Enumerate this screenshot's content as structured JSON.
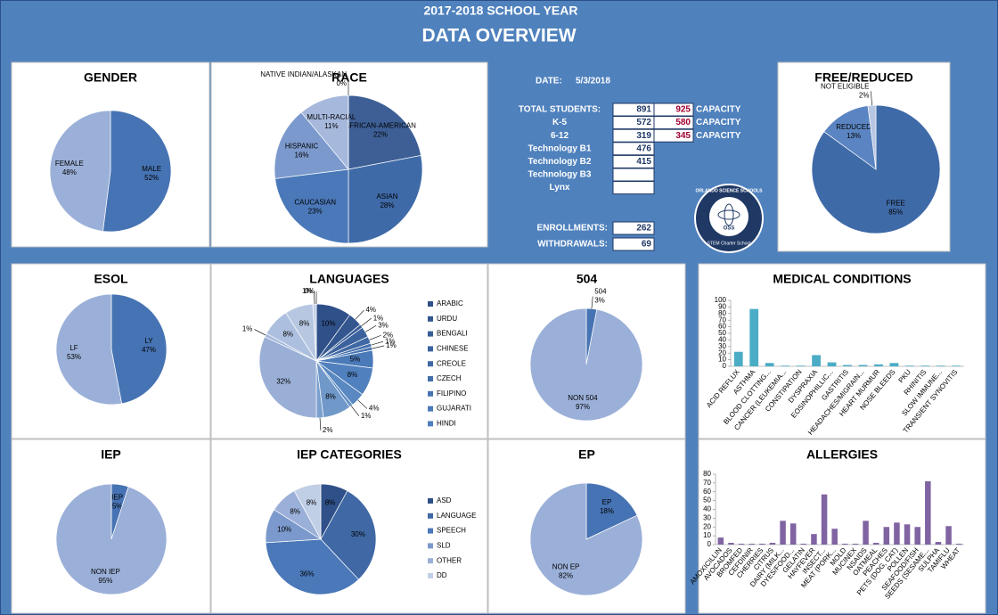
{
  "header": {
    "year": "2017-2018   SCHOOL YEAR",
    "title": "DATA OVERVIEW"
  },
  "stats": {
    "date_label": "DATE:",
    "date": "5/3/2018",
    "rows": [
      {
        "label": "TOTAL STUDENTS:",
        "count": 891,
        "capacity": 925,
        "capacity_label": "CAPACITY"
      },
      {
        "label": "K-5",
        "count": 572,
        "capacity": 580,
        "capacity_label": "CAPACITY"
      },
      {
        "label": "6-12",
        "count": 319,
        "capacity": 345,
        "capacity_label": "CAPACITY"
      },
      {
        "label": "Technology B1",
        "count": 476
      },
      {
        "label": "Technology B2",
        "count": 415
      },
      {
        "label": "Technology B3"
      },
      {
        "label": "Lynx"
      }
    ],
    "enrollments": {
      "label": "ENROLLMENTS:",
      "value": 262
    },
    "withdrawals": {
      "label": "WITHDRAWALS:",
      "value": 69
    }
  },
  "logo": {
    "name": "ORLANDO SCIENCE SCHOOLS",
    "initials": "OSS",
    "tagline": "STEM Charter School"
  },
  "chart_data": [
    {
      "type": "pie",
      "title": "GENDER",
      "categories": [
        "MALE",
        "FEMALE"
      ],
      "values": [
        52,
        48
      ],
      "value_labels": [
        "52%",
        "48%"
      ],
      "colors": [
        "#4673b3",
        "#9bb0d8"
      ]
    },
    {
      "type": "pie",
      "title": "RACE",
      "categories": [
        "AFRICAN-AMERICAN",
        "ASIAN",
        "CAUCASIAN",
        "HISPANIC",
        "MULTI-RACIAL",
        "NATIVE INDIAN/ALASKAN"
      ],
      "values": [
        22,
        28,
        23,
        16,
        11,
        0
      ],
      "value_labels": [
        "22%",
        "28%",
        "23%",
        "16%",
        "11%",
        "0%"
      ],
      "colors": [
        "#3d5f96",
        "#3f6aa8",
        "#4a78b8",
        "#7b99cc",
        "#a6b8dc",
        "#c3cfe8"
      ]
    },
    {
      "type": "pie",
      "title": "FREE/REDUCED",
      "categories": [
        "FREE",
        "REDUCED",
        "NOT ELIGIBLE"
      ],
      "values": [
        85,
        13,
        2
      ],
      "value_labels": [
        "85%",
        "13%",
        "2%"
      ],
      "colors": [
        "#3f6aa8",
        "#5b85c2",
        "#b7c6e2"
      ]
    },
    {
      "type": "pie",
      "title": "ESOL",
      "categories": [
        "LY",
        "LF"
      ],
      "values": [
        47,
        53
      ],
      "value_labels": [
        "47%",
        "53%"
      ],
      "colors": [
        "#4673b3",
        "#9bb0d8"
      ]
    },
    {
      "type": "pie",
      "title": "LANGUAGES",
      "legend": "right",
      "slice_labels": "percent",
      "categories": [
        "ARABIC",
        "URDU",
        "BENGALI",
        "CHINESE",
        "CREOLE",
        "CZECH",
        "FILIPINO",
        "GUJARATI",
        "HINDI",
        null,
        null,
        null,
        null,
        null,
        null,
        null,
        null,
        null,
        null
      ],
      "values": [
        10,
        4,
        1,
        3,
        2,
        1,
        1,
        5,
        8,
        4,
        1,
        8,
        2,
        32,
        1,
        8,
        8,
        1,
        0
      ],
      "value_labels": [
        "10%",
        "4%",
        "1%",
        "3%",
        "2%",
        "1%",
        "1%",
        "5%",
        "8%",
        "4%",
        "1%",
        "8%",
        "2%",
        "32%",
        "1%",
        "8%",
        "8%",
        "1%",
        "0%"
      ],
      "colors": [
        "#2f5089",
        "#33568f",
        "#375c96",
        "#3b629d",
        "#3f68a4",
        "#436eab",
        "#4774b2",
        "#4b7ab9",
        "#5080bd",
        "#5a88c1",
        "#6590c5",
        "#7098c9",
        "#7ba0cd",
        "#9aafd6",
        "#a3b7da",
        "#adbfde",
        "#b7c7e2",
        "#c1cfe6",
        "#cbd7ea"
      ]
    },
    {
      "type": "pie",
      "title": "504",
      "categories": [
        "504",
        "NON 504"
      ],
      "values": [
        3,
        97
      ],
      "value_labels": [
        "3%",
        "97%"
      ],
      "colors": [
        "#4673b3",
        "#9bb0d8"
      ]
    },
    {
      "type": "bar",
      "title": "MEDICAL CONDITIONS",
      "color": "#4bacc6",
      "categories": [
        "ACID REFLUX",
        "ASTHMA",
        "BLOOD CLOTTING...",
        "CANCER (LEUKEMIA...",
        "CONSTIPATION",
        "DYSPRAXIA",
        "EOSINOPHILLIC...",
        "GASTRITIS",
        "HEADACHES/MIGRAIN...",
        "HEART MURMUR",
        "NOSE BLEEDS",
        "PKU",
        "RHINITIS",
        "SLOW IMMUNE...",
        "TRANSIENT SYNOVITIS"
      ],
      "values": [
        22,
        87,
        5,
        1,
        1,
        17,
        6,
        2,
        2,
        3,
        5,
        1,
        1,
        1,
        1
      ],
      "ylim": [
        0,
        100
      ],
      "yticks": [
        0,
        10,
        20,
        30,
        40,
        50,
        60,
        70,
        80,
        90,
        100
      ]
    },
    {
      "type": "pie",
      "title": "IEP",
      "categories": [
        "IEP",
        "NON IEP"
      ],
      "values": [
        5,
        95
      ],
      "value_labels": [
        "5%",
        "95%"
      ],
      "colors": [
        "#4673b3",
        "#9bb0d8"
      ]
    },
    {
      "type": "pie",
      "title": "IEP CATEGORIES",
      "legend": "right",
      "slice_labels": "percent",
      "categories": [
        "ASD",
        "LANGUAGE",
        "SPEECH",
        "SLD",
        "OTHER",
        "DD"
      ],
      "values": [
        8,
        30,
        36,
        10,
        8,
        8
      ],
      "value_labels": [
        "8%",
        "30%",
        "36%",
        "10%",
        "8%",
        "8%"
      ],
      "colors": [
        "#2f5089",
        "#3f68a4",
        "#4a78b8",
        "#7b99cc",
        "#9bb0d8",
        "#c1cfe6"
      ]
    },
    {
      "type": "pie",
      "title": "EP",
      "categories": [
        "EP",
        "NON EP"
      ],
      "values": [
        18,
        82
      ],
      "value_labels": [
        "18%",
        "82%"
      ],
      "colors": [
        "#4673b3",
        "#9bb0d8"
      ]
    },
    {
      "type": "bar",
      "title": "ALLERGIES",
      "color": "#8064a2",
      "categories": [
        "AMOXICILLIN",
        "AVOCADOS",
        "BROMFED",
        "CEFDINIR",
        "CHERRIES",
        "CITRUS",
        "DAIRY (MILK...",
        "DYES/FOOD...",
        "GELATIN",
        "HAYFEVER",
        "INSECT...",
        "MEAT (PORK...",
        "MOLD",
        "MUCINEX",
        "NSAIDS",
        "OATMEAL",
        "PEACHES",
        "PETS (DOG, CAT)",
        "POLLEN",
        "SEAFOOD/FISH",
        "SEEDS (SESAME...",
        "SULPHA",
        "TAMIFLU",
        "WHEAT"
      ],
      "values": [
        8,
        2,
        1,
        1,
        1,
        2,
        27,
        24,
        1,
        12,
        57,
        18,
        1,
        1,
        27,
        2,
        20,
        25,
        23,
        20,
        72,
        3,
        21,
        1
      ],
      "ylim": [
        0,
        80
      ],
      "yticks": [
        0,
        10,
        20,
        30,
        40,
        50,
        60,
        70,
        80
      ]
    }
  ]
}
